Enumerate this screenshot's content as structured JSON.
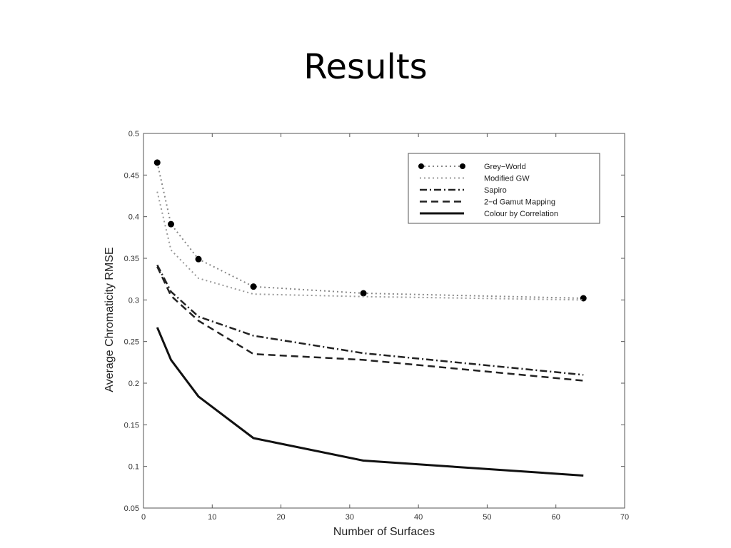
{
  "slide": {
    "title": "Results"
  },
  "chart_data": {
    "type": "line",
    "title": "",
    "xlabel": "Number of Surfaces",
    "ylabel": "Average Chromaticity RMSE",
    "xlim": [
      0,
      70
    ],
    "ylim": [
      0.05,
      0.5
    ],
    "xticks": [
      0,
      10,
      20,
      30,
      40,
      50,
      60,
      70
    ],
    "yticks": [
      0.05,
      0.1,
      0.15,
      0.2,
      0.25,
      0.3,
      0.35,
      0.4,
      0.45,
      0.5
    ],
    "grid": false,
    "legend_position": "top-right",
    "series": [
      {
        "name": "Grey−World",
        "style": "dotted-markers",
        "color": "#888888",
        "x": [
          2,
          4,
          8,
          16,
          32,
          64
        ],
        "y": [
          0.465,
          0.391,
          0.349,
          0.316,
          0.308,
          0.302
        ]
      },
      {
        "name": "Modified GW",
        "style": "dotted",
        "color": "#999999",
        "x": [
          2,
          4,
          8,
          16,
          32,
          64
        ],
        "y": [
          0.43,
          0.36,
          0.326,
          0.307,
          0.304,
          0.3
        ]
      },
      {
        "name": "Sapiro",
        "style": "dashdot",
        "color": "#222222",
        "x": [
          2,
          4,
          8,
          16,
          32,
          64
        ],
        "y": [
          0.342,
          0.31,
          0.28,
          0.257,
          0.236,
          0.21
        ]
      },
      {
        "name": "2−d Gamut Mapping",
        "style": "dashed",
        "color": "#222222",
        "x": [
          2,
          4,
          8,
          16,
          32,
          64
        ],
        "y": [
          0.34,
          0.305,
          0.275,
          0.235,
          0.228,
          0.203
        ]
      },
      {
        "name": "Colour by Correlation",
        "style": "solid",
        "color": "#111111",
        "x": [
          2,
          4,
          8,
          16,
          32,
          64
        ],
        "y": [
          0.267,
          0.228,
          0.184,
          0.134,
          0.107,
          0.089
        ]
      }
    ]
  }
}
